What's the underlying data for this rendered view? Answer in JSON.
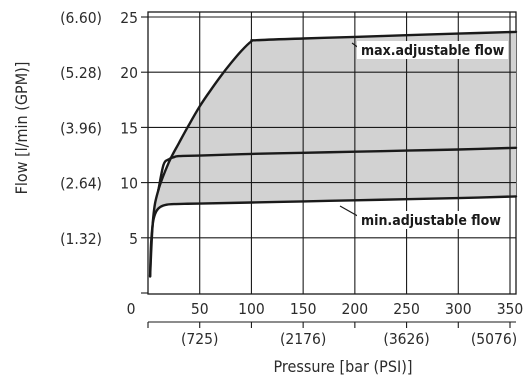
{
  "chart_data": {
    "type": "area",
    "title": "",
    "xlabel": "Pressure [bar (PSI)]",
    "ylabel": "Flow [l/min (GPM)]",
    "xlim": [
      0,
      360
    ],
    "ylim": [
      0,
      25
    ],
    "grid": true,
    "x_ticks": [
      {
        "value": 0,
        "label": "0"
      },
      {
        "value": 50,
        "label": "50"
      },
      {
        "value": 100,
        "label": "100"
      },
      {
        "value": 150,
        "label": "150"
      },
      {
        "value": 200,
        "label": "200"
      },
      {
        "value": 250,
        "label": "250"
      },
      {
        "value": 300,
        "label": "300"
      },
      {
        "value": 350,
        "label": "350"
      }
    ],
    "x_secondary_ticks": [
      {
        "value": 50,
        "label": "(725)"
      },
      {
        "value": 150,
        "label": "(2176)"
      },
      {
        "value": 250,
        "label": "(3626)"
      },
      {
        "value": 350,
        "label": "(5076)"
      }
    ],
    "y_ticks": [
      {
        "value": 5,
        "label": "5",
        "secondary": "(1.32)"
      },
      {
        "value": 10,
        "label": "10",
        "secondary": "(2.64)"
      },
      {
        "value": 15,
        "label": "15",
        "secondary": "(3.96)"
      },
      {
        "value": 20,
        "label": "20",
        "secondary": "(5.28)"
      },
      {
        "value": 25,
        "label": "25",
        "secondary": "(6.60)"
      }
    ],
    "series": [
      {
        "name": "max.adjustable flow",
        "x": [
          2,
          5,
          10,
          20,
          30,
          40,
          50,
          60,
          70,
          80,
          90,
          100,
          105,
          150,
          200,
          250,
          300,
          360
        ],
        "y": [
          1.5,
          6.8,
          9.3,
          11.8,
          13.6,
          15.3,
          16.9,
          18.3,
          19.6,
          20.8,
          21.9,
          22.8,
          22.9,
          23.05,
          23.2,
          23.35,
          23.5,
          23.65
        ]
      },
      {
        "name": "",
        "x": [
          10,
          15,
          20,
          25,
          30,
          50,
          100,
          150,
          200,
          250,
          300,
          360
        ],
        "y": [
          9.3,
          11.6,
          12.1,
          12.3,
          12.4,
          12.45,
          12.6,
          12.7,
          12.8,
          12.9,
          13.0,
          13.15
        ]
      },
      {
        "name": "min.adjustable flow",
        "x": [
          2,
          3,
          5,
          8,
          12,
          18,
          25,
          35,
          50,
          100,
          150,
          200,
          250,
          300,
          360
        ],
        "y": [
          1.5,
          4.5,
          6.5,
          7.4,
          7.8,
          8.0,
          8.05,
          8.08,
          8.1,
          8.2,
          8.3,
          8.4,
          8.5,
          8.6,
          8.75
        ]
      }
    ],
    "annotations": [
      {
        "text": "max.adjustable flow",
        "series": 0
      },
      {
        "text": "min.adjustable flow",
        "series": 2
      }
    ],
    "fill_color": "#d2d2d2",
    "line_color": "#1a1a1a",
    "grid_color": "#1a1a1a"
  }
}
